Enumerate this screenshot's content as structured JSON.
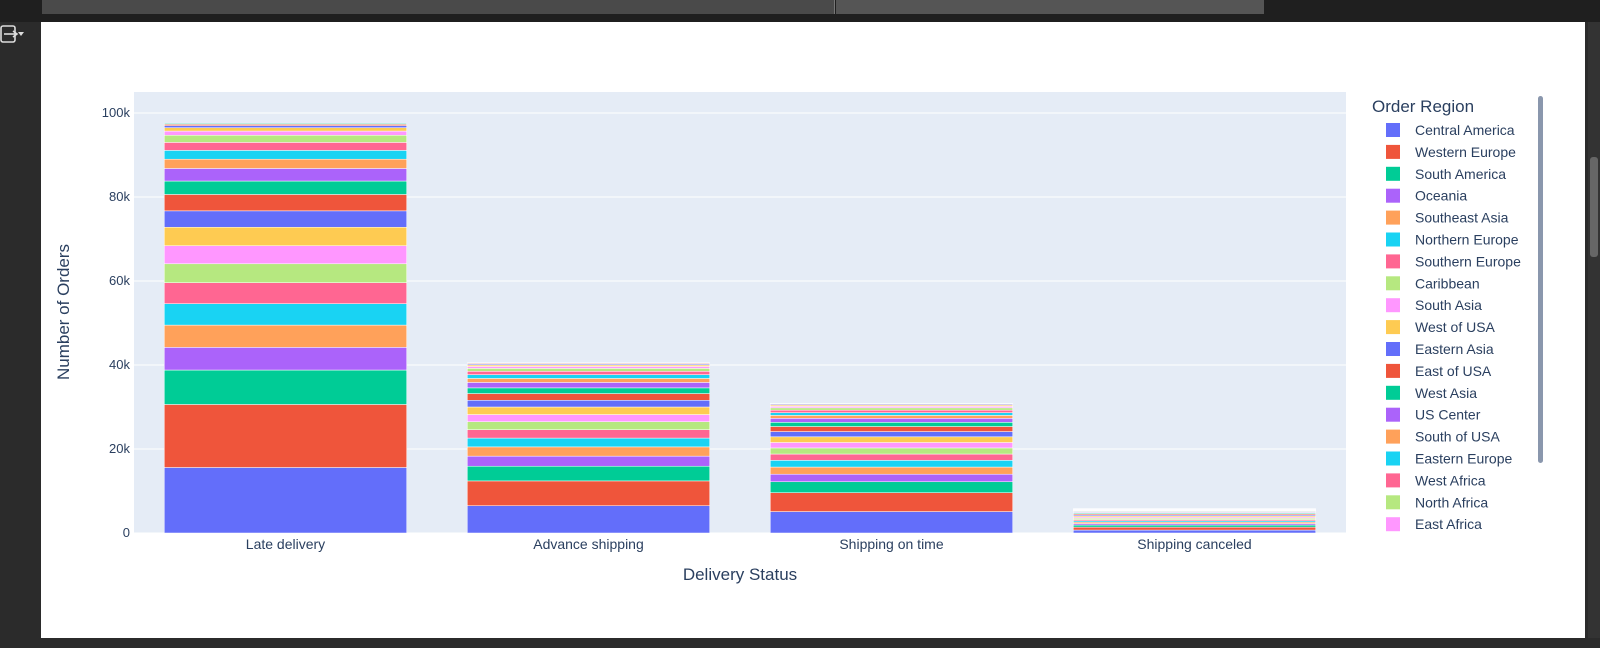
{
  "chart_data": {
    "type": "bar",
    "barmode": "stack",
    "xlabel": "Delivery Status",
    "ylabel": "Number of Orders",
    "categories": [
      "Late delivery",
      "Advance shipping",
      "Shipping on time",
      "Shipping canceled"
    ],
    "ylim": [
      0,
      105000
    ],
    "yticks": [
      0,
      20000,
      40000,
      60000,
      80000,
      100000
    ],
    "ytick_labels": [
      "0",
      "20k",
      "40k",
      "60k",
      "80k",
      "100k"
    ],
    "grid": true,
    "legend": {
      "title": "Order Region",
      "placement": "right"
    },
    "series": [
      {
        "name": "Central America",
        "color": "#636efa",
        "values": [
          15600,
          6500,
          5100,
          700
        ]
      },
      {
        "name": "Western Europe",
        "color": "#EF553B",
        "values": [
          15000,
          5900,
          4500,
          700
        ]
      },
      {
        "name": "South America",
        "color": "#00cc96",
        "values": [
          8200,
          3500,
          2600,
          500
        ]
      },
      {
        "name": "Oceania",
        "color": "#ab63fa",
        "values": [
          5400,
          2400,
          1800,
          350
        ]
      },
      {
        "name": "Southeast Asia",
        "color": "#FFA15A",
        "values": [
          5300,
          2200,
          1700,
          350
        ]
      },
      {
        "name": "Northern Europe",
        "color": "#19d3f3",
        "values": [
          5100,
          2100,
          1600,
          300
        ]
      },
      {
        "name": "Southern Europe",
        "color": "#FF6692",
        "values": [
          5000,
          2000,
          1500,
          300
        ]
      },
      {
        "name": "Caribbean",
        "color": "#B6E880",
        "values": [
          4500,
          1900,
          1450,
          300
        ]
      },
      {
        "name": "South Asia",
        "color": "#FF97FF",
        "values": [
          4300,
          1700,
          1300,
          280
        ]
      },
      {
        "name": "West of USA",
        "color": "#FECB52",
        "values": [
          4400,
          1800,
          1350,
          280
        ]
      },
      {
        "name": "Eastern Asia",
        "color": "#636efa",
        "values": [
          3900,
          1600,
          1250,
          260
        ]
      },
      {
        "name": "East of USA",
        "color": "#EF553B",
        "values": [
          3900,
          1600,
          1200,
          250
        ]
      },
      {
        "name": "West Asia",
        "color": "#00cc96",
        "values": [
          3200,
          1350,
          1000,
          220
        ]
      },
      {
        "name": "US Center",
        "color": "#ab63fa",
        "values": [
          3000,
          1300,
          950,
          200
        ]
      },
      {
        "name": "South of  USA",
        "color": "#FFA15A",
        "values": [
          2200,
          950,
          700,
          150
        ]
      },
      {
        "name": "Eastern Europe",
        "color": "#19d3f3",
        "values": [
          2100,
          900,
          650,
          150
        ]
      },
      {
        "name": "West Africa",
        "color": "#FF6692",
        "values": [
          1900,
          800,
          600,
          130
        ]
      },
      {
        "name": "North Africa",
        "color": "#B6E880",
        "values": [
          1700,
          700,
          550,
          120
        ]
      },
      {
        "name": "East Africa",
        "color": "#FF97FF",
        "values": [
          1000,
          450,
          350,
          80
        ]
      },
      {
        "name": "",
        "color": "#FECB52",
        "values": [
          800,
          350,
          280,
          60
        ]
      },
      {
        "name": "",
        "color": "#636efa",
        "values": [
          500,
          250,
          200,
          50
        ]
      },
      {
        "name": "",
        "color": "#EF553B",
        "values": [
          300,
          180,
          150,
          40
        ]
      },
      {
        "name": "",
        "color": "#00cc96",
        "values": [
          200,
          120,
          100,
          30
        ]
      }
    ]
  }
}
